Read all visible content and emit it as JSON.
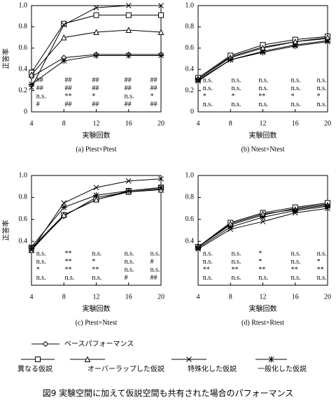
{
  "chart_data": [
    {
      "type": "line",
      "caption": "(a) Ptest×Ptest",
      "xlabel": "実験回数",
      "ylabel": "正答率",
      "x": [
        4,
        8,
        12,
        16,
        20
      ],
      "xlim": [
        4,
        20
      ],
      "xticks": [
        4,
        8,
        12,
        16,
        20
      ],
      "ylim": [
        0,
        1
      ],
      "yticks": [
        0,
        0.2,
        0.4,
        0.6,
        0.8,
        {
          "value": 1,
          "label": "1.0"
        }
      ],
      "series": [
        {
          "name": "ベースパフォーマンス",
          "color": "#000000",
          "marker": "diamond",
          "values": [
            0.33,
            0.51,
            0.54,
            0.54,
            0.54
          ]
        },
        {
          "name": "異なる仮説",
          "color": "#000000",
          "marker": "square",
          "values": [
            0.37,
            0.83,
            0.91,
            0.91,
            0.91
          ]
        },
        {
          "name": "オーバーラップした仮説",
          "color": "#000000",
          "marker": "triangle",
          "values": [
            0.35,
            0.7,
            0.75,
            0.77,
            0.75
          ]
        },
        {
          "name": "特殊化した仮説",
          "color": "#000000",
          "marker": "x",
          "values": [
            0.23,
            0.82,
            0.98,
            1.0,
            1.0
          ]
        },
        {
          "name": "一般化した仮説",
          "color": "#000000",
          "marker": "star",
          "values": [
            0.26,
            0.48,
            0.53,
            0.53,
            0.53
          ]
        }
      ],
      "significance": [
        [
          "##",
          "##",
          "##",
          "##",
          "##"
        ],
        [
          "##",
          "##",
          "##",
          "##",
          "##"
        ],
        [
          "n.s.",
          "**",
          "*",
          "n.s.",
          "*"
        ],
        [
          "#",
          "##",
          "##",
          "##",
          "##"
        ]
      ]
    },
    {
      "type": "line",
      "caption": "(b) Ntest×Ntest",
      "xlabel": "実験回数",
      "x": [
        4,
        8,
        12,
        16,
        20
      ],
      "xlim": [
        4,
        20
      ],
      "xticks": [
        4,
        8,
        12,
        16,
        20
      ],
      "ylim": [
        0,
        1
      ],
      "yticks": [
        0,
        0.2,
        0.4,
        0.6,
        0.8,
        {
          "value": 1,
          "label": "1.0"
        }
      ],
      "series": [
        {
          "name": "ベースパフォーマンス",
          "color": "#000000",
          "marker": "diamond",
          "values": [
            0.31,
            0.52,
            0.61,
            0.66,
            0.69
          ]
        },
        {
          "name": "異なる仮説",
          "color": "#000000",
          "marker": "square",
          "values": [
            0.32,
            0.53,
            0.63,
            0.68,
            0.71
          ]
        },
        {
          "name": "オーバーラップした仮説",
          "color": "#000000",
          "marker": "triangle",
          "values": [
            0.31,
            0.51,
            0.6,
            0.66,
            0.7
          ]
        },
        {
          "name": "特殊化した仮説",
          "color": "#000000",
          "marker": "x",
          "values": [
            0.29,
            0.49,
            0.57,
            0.63,
            0.67
          ]
        },
        {
          "name": "一般化した仮説",
          "color": "#000000",
          "marker": "star",
          "values": [
            0.3,
            0.49,
            0.56,
            0.62,
            0.66
          ]
        }
      ],
      "significance": [
        [
          "n.s.",
          "n.s.",
          "n.s.",
          "n.s.",
          "n.s."
        ],
        [
          "n.s.",
          "n.s.",
          "n.s.",
          "n.s.",
          "n.s."
        ],
        [
          "*",
          "*",
          "**",
          "*",
          "*"
        ],
        [
          "n.s.",
          "n.s.",
          "n.s.",
          "n.s.",
          "n.s."
        ]
      ]
    },
    {
      "type": "line",
      "caption": "(c) Ptest×Ntest",
      "xlabel": "実験回数",
      "ylabel": "正答率",
      "x": [
        4,
        8,
        12,
        16,
        20
      ],
      "xlim": [
        4,
        20
      ],
      "xticks": [
        4,
        8,
        12,
        16,
        20
      ],
      "ylim": [
        0,
        1
      ],
      "yticks": [
        0.4,
        0.6,
        0.8,
        {
          "value": 1,
          "label": "1.0"
        }
      ],
      "series": [
        {
          "name": "ベースパフォーマンス",
          "color": "#000000",
          "marker": "diamond",
          "values": [
            0.33,
            0.63,
            0.8,
            0.85,
            0.88
          ]
        },
        {
          "name": "異なる仮説",
          "color": "#000000",
          "marker": "square",
          "values": [
            0.34,
            0.64,
            0.78,
            0.86,
            0.89
          ]
        },
        {
          "name": "オーバーラップした仮説",
          "color": "#000000",
          "marker": "triangle",
          "values": [
            0.32,
            0.64,
            0.78,
            0.85,
            0.87
          ]
        },
        {
          "name": "特殊化した仮説",
          "color": "#000000",
          "marker": "x",
          "values": [
            0.32,
            0.75,
            0.89,
            0.95,
            0.97
          ]
        },
        {
          "name": "一般化した仮説",
          "color": "#000000",
          "marker": "star",
          "values": [
            0.35,
            0.71,
            0.82,
            0.86,
            0.89
          ]
        }
      ],
      "significance": [
        [
          "n.s.",
          "**",
          "n.s.",
          "n.s.",
          "n.s."
        ],
        [
          "n.s.",
          "**",
          "*",
          "n.s.",
          "#"
        ],
        [
          "*",
          "**",
          "**",
          "n.s.",
          "n.s."
        ],
        [
          "n.s.",
          "n.s.",
          "n.s.",
          "#",
          "##"
        ]
      ]
    },
    {
      "type": "line",
      "caption": "(d) Rtest×Rtest",
      "xlabel": "実験回数",
      "x": [
        4,
        8,
        12,
        16,
        20
      ],
      "xlim": [
        4,
        20
      ],
      "xticks": [
        4,
        8,
        12,
        16,
        20
      ],
      "ylim": [
        0,
        1
      ],
      "yticks": [
        0.4,
        0.6,
        0.8,
        {
          "value": 1,
          "label": "1.0"
        }
      ],
      "series": [
        {
          "name": "ベースパフォーマンス",
          "color": "#000000",
          "marker": "diamond",
          "values": [
            0.35,
            0.55,
            0.64,
            0.7,
            0.74
          ]
        },
        {
          "name": "異なる仮説",
          "color": "#000000",
          "marker": "square",
          "values": [
            0.35,
            0.57,
            0.66,
            0.71,
            0.75
          ]
        },
        {
          "name": "オーバーラップした仮説",
          "color": "#000000",
          "marker": "triangle",
          "values": [
            0.35,
            0.56,
            0.65,
            0.69,
            0.73
          ]
        },
        {
          "name": "特殊化した仮説",
          "color": "#000000",
          "marker": "x",
          "values": [
            0.33,
            0.51,
            0.58,
            0.66,
            0.7
          ]
        },
        {
          "name": "一般化した仮説",
          "color": "#000000",
          "marker": "star",
          "values": [
            0.34,
            0.53,
            0.62,
            0.68,
            0.72
          ]
        }
      ],
      "significance": [
        [
          "n.s.",
          "n.s.",
          "*",
          "n.s.",
          "n.s."
        ],
        [
          "n.s.",
          "n.s.",
          "*",
          "n.s.",
          "*"
        ],
        [
          "**",
          "**",
          "**",
          "**",
          "**"
        ],
        [
          "n.s.",
          "n.s.",
          "n.s.",
          "n.s.",
          "n.s."
        ]
      ]
    }
  ],
  "caption": "図9 実験空間に加えて仮説空間も共有された場合のパフォーマンス"
}
